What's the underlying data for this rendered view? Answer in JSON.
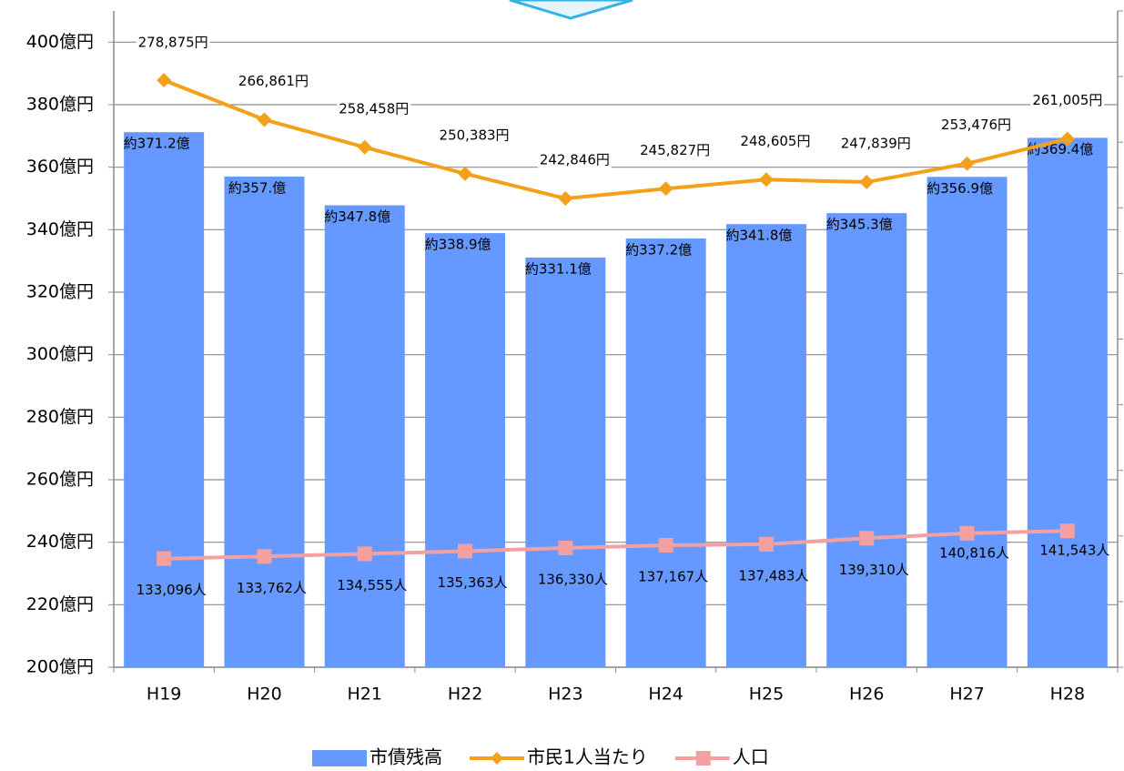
{
  "chart_data": {
    "type": "bar_line",
    "categories": [
      "H19",
      "H20",
      "H21",
      "H22",
      "H23",
      "H24",
      "H25",
      "H26",
      "H27",
      "H28"
    ],
    "ylim": [
      200,
      410
    ],
    "yticks": [
      {
        "value": 200,
        "label": "200億円"
      },
      {
        "value": 220,
        "label": "220億円"
      },
      {
        "value": 240,
        "label": "240億円"
      },
      {
        "value": 260,
        "label": "260億円"
      },
      {
        "value": 280,
        "label": "280億円"
      },
      {
        "value": 300,
        "label": "300億円"
      },
      {
        "value": 320,
        "label": "320億円"
      },
      {
        "value": 340,
        "label": "340億円"
      },
      {
        "value": 360,
        "label": "360億円"
      },
      {
        "value": 380,
        "label": "380億円"
      },
      {
        "value": 400,
        "label": "400億円"
      }
    ],
    "y2lim": [
      100000,
      300000
    ],
    "y2ticks": [
      100000,
      120000,
      140000,
      160000,
      180000,
      200000,
      220000,
      240000,
      260000,
      280000,
      300000
    ],
    "grid": true,
    "legend": "bottom",
    "series": [
      {
        "name": "市債残高",
        "type": "bar",
        "color": "#6699ff",
        "values": [
          371.2,
          357,
          347.8,
          338.9,
          331.1,
          337.2,
          341.8,
          345.3,
          356.9,
          369.4
        ],
        "value_labels": [
          "約371.2億",
          "約357.億",
          "約347.8億",
          "約338.9億",
          "約331.1億",
          "約337.2億",
          "約341.8億",
          "約345.3億",
          "約356.9億",
          "約369.4億"
        ]
      },
      {
        "name": "市民1人当たり",
        "type": "line",
        "axis": "y2",
        "color": "#f5a01a",
        "marker": "diamond",
        "values": [
          278875,
          266861,
          258458,
          250383,
          242846,
          245827,
          248605,
          247839,
          253476,
          261005
        ],
        "value_labels": [
          "278,875円",
          "266,861円",
          "258,458円",
          "250,383円",
          "242,846円",
          "245,827円",
          "248,605円",
          "247,839円",
          "253,476円",
          "261,005円"
        ]
      },
      {
        "name": "人口",
        "type": "line",
        "axis": "y2",
        "color": "#f4a0a0",
        "marker": "square",
        "values": [
          133096,
          133762,
          134555,
          135363,
          136330,
          137167,
          137483,
          139310,
          140816,
          141543
        ],
        "value_labels": [
          "133,096人",
          "133,762人",
          "134,555人",
          "135,363人",
          "136,330人",
          "137,167人",
          "137,483人",
          "139,310人",
          "140,816人",
          "141,543人"
        ]
      }
    ]
  }
}
